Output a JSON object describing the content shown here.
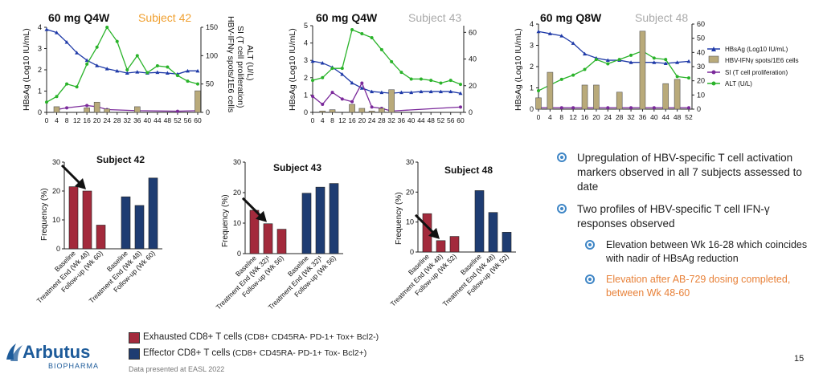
{
  "colors": {
    "hbsag": "#1f3aa8",
    "ifn": "#b9aa7a",
    "si": "#7b2a9b",
    "alt": "#2ab32a",
    "exhausted": "#a32a3c",
    "effector": "#1e3c72",
    "bullet": "#3f86c6",
    "orange": "#e8823a",
    "logo": "#1d5b9a"
  },
  "top_panels": [
    {
      "dose": "60 mg Q4W",
      "subject": "Subject 42",
      "subject_color": "#f0a030",
      "left_axis_label": "HBsAg (Log10 IU/mL)",
      "right_axis_label_1": "HBV-IFNγ spots/1E6 cells",
      "right_axis_label_2": "SI (T cell proliferation)",
      "right_axis_label_3": "ALT (U/L)",
      "left_ticks": [
        "0",
        "1",
        "2",
        "3",
        "4"
      ],
      "right_ticks": [
        "0",
        "50",
        "100",
        "150"
      ],
      "x_ticks": [
        "0",
        "4",
        "8",
        "12",
        "16",
        "20",
        "24",
        "28",
        "32",
        "36",
        "40",
        "44",
        "48",
        "52",
        "56",
        "60"
      ]
    },
    {
      "dose": "60 mg Q4W",
      "subject": "Subject 43",
      "subject_color": "#aaaaaa",
      "left_axis_label": "HBsAg (Log10 IU/mL)",
      "left_ticks": [
        "0",
        "1",
        "2",
        "3",
        "4",
        "5"
      ],
      "right_ticks": [
        "0",
        "20",
        "40",
        "60"
      ],
      "x_ticks": [
        "0",
        "4",
        "8",
        "12",
        "16",
        "20",
        "24",
        "28",
        "32",
        "36",
        "40",
        "44",
        "48",
        "52",
        "56",
        "60"
      ]
    },
    {
      "dose": "60 mg Q8W",
      "subject": "Subject 48",
      "subject_color": "#aaaaaa",
      "left_axis_label": "HBsAg (Log10 IU/mL)",
      "left_ticks": [
        "0",
        "1",
        "2",
        "3",
        "4"
      ],
      "right_ticks": [
        "0",
        "10",
        "20",
        "30",
        "40",
        "50",
        "60"
      ],
      "x_ticks": [
        "0",
        "4",
        "8",
        "12",
        "16",
        "20",
        "24",
        "28",
        "32",
        "36",
        "40",
        "44",
        "48",
        "52"
      ]
    }
  ],
  "top_legend": {
    "hbsag": "HBsAg (Log10  IU/mL)",
    "ifn": "HBV-IFNγ spots/1E6 cells",
    "si": "SI (T cell proliferation)",
    "alt": "ALT (U/L)"
  },
  "chart_data": [
    {
      "type": "line",
      "title": "60 mg Q4W Subject 42",
      "x": [
        0,
        4,
        8,
        12,
        16,
        20,
        24,
        28,
        32,
        36,
        40,
        44,
        48,
        52,
        56,
        60
      ],
      "series": [
        {
          "name": "HBsAg (Log10 IU/mL)",
          "axis": "left",
          "values": [
            3.9,
            3.75,
            3.3,
            2.8,
            2.45,
            2.2,
            2.05,
            1.95,
            1.85,
            1.9,
            1.85,
            1.88,
            1.85,
            1.8,
            1.95,
            1.95
          ]
        },
        {
          "name": "ALT (U/L)",
          "axis": "right",
          "values": [
            18,
            28,
            50,
            45,
            85,
            115,
            150,
            125,
            75,
            100,
            70,
            82,
            80,
            65,
            55,
            50
          ]
        },
        {
          "name": "SI (T cell proliferation)",
          "axis": "right",
          "values": [
            null,
            5,
            8,
            null,
            12,
            10,
            5,
            null,
            null,
            3,
            null,
            null,
            null,
            2,
            null,
            3
          ]
        },
        {
          "name": "HBV-IFNγ spots/1E6 cells",
          "axis": "right",
          "values": [
            null,
            10,
            null,
            null,
            8,
            18,
            6,
            null,
            null,
            10,
            null,
            null,
            null,
            null,
            null,
            38
          ]
        }
      ],
      "ylim_left": [
        0,
        4
      ],
      "ylim_right": [
        0,
        150
      ]
    },
    {
      "type": "line",
      "title": "60 mg Q4W Subject 43",
      "x": [
        0,
        4,
        8,
        12,
        16,
        20,
        24,
        28,
        32,
        36,
        40,
        44,
        48,
        52,
        56,
        60
      ],
      "series": [
        {
          "name": "HBsAg (Log10 IU/mL)",
          "axis": "left",
          "values": [
            2.95,
            2.85,
            2.6,
            2.2,
            1.7,
            1.4,
            1.2,
            1.15,
            1.1,
            1.15,
            1.15,
            1.2,
            1.2,
            1.2,
            1.2,
            1.1
          ]
        },
        {
          "name": "ALT (U/L)",
          "axis": "right",
          "values": [
            24,
            26,
            33,
            33,
            62,
            59,
            56,
            47,
            38,
            30,
            25,
            25,
            24,
            22,
            24,
            21
          ]
        },
        {
          "name": "SI (T cell proliferation)",
          "axis": "right",
          "values": [
            12,
            6,
            15,
            10,
            8,
            22,
            4,
            3,
            1,
            null,
            null,
            null,
            null,
            null,
            null,
            4
          ]
        },
        {
          "name": "HBV-IFNγ spots/1E6 cells",
          "axis": "right",
          "values": [
            null,
            1,
            2,
            null,
            6,
            3,
            1,
            3,
            17,
            null,
            null,
            null,
            null,
            null,
            null,
            null
          ]
        }
      ],
      "ylim_left": [
        0,
        5
      ],
      "ylim_right": [
        0,
        65
      ]
    },
    {
      "type": "line",
      "title": "60 mg Q8W Subject 48",
      "x": [
        0,
        4,
        8,
        12,
        16,
        20,
        24,
        28,
        32,
        36,
        40,
        44,
        48,
        52
      ],
      "series": [
        {
          "name": "HBsAg (Log10 IU/mL)",
          "axis": "left",
          "values": [
            3.65,
            3.55,
            3.45,
            3.1,
            2.6,
            2.4,
            2.3,
            2.3,
            2.2,
            2.2,
            2.2,
            2.15,
            2.2,
            2.25
          ]
        },
        {
          "name": "ALT (U/L)",
          "axis": "right",
          "values": [
            13,
            17,
            21,
            24,
            28,
            35,
            32,
            35,
            38,
            41,
            36,
            35,
            23,
            22
          ]
        },
        {
          "name": "SI (T cell proliferation)",
          "axis": "right",
          "values": [
            1,
            1,
            1,
            1,
            1,
            1,
            1,
            1,
            1,
            1,
            1,
            1,
            1,
            1
          ]
        },
        {
          "name": "HBV-IFNγ spots/1E6 cells",
          "axis": "right",
          "values": [
            8,
            26,
            null,
            null,
            17,
            17,
            null,
            12,
            null,
            55,
            null,
            18,
            21,
            null
          ]
        }
      ],
      "ylim_left": [
        0,
        4
      ],
      "ylim_right": [
        0,
        60
      ]
    },
    {
      "type": "bar",
      "title": "Subject 42",
      "categories": [
        "Baseline",
        "Treatment End (Wk 48)",
        "Follow-up (Wk 60)",
        "Baseline",
        "Treatment End (Wk 48)",
        "Follow-up (Wk 60)"
      ],
      "series": [
        {
          "name": "Exhausted CD8+ T cells",
          "values": [
            21.5,
            20,
            8.2,
            null,
            null,
            null
          ]
        },
        {
          "name": "Effector CD8+ T cells",
          "values": [
            null,
            null,
            null,
            18,
            15,
            24.5
          ]
        }
      ],
      "ylabel": "Frequency (%)",
      "ylim": [
        0,
        30
      ],
      "yticks": [
        "0",
        "10",
        "20",
        "30"
      ]
    },
    {
      "type": "bar",
      "title": "Subject 43",
      "categories": [
        "Baseline",
        "Treatment End (Wk 32)¹",
        "Follow-up (Wk 56)",
        "Baseline",
        "Treatment End (Wk 32)¹",
        "Follow-up (Wk 56)"
      ],
      "series": [
        {
          "name": "Exhausted CD8+ T cells",
          "values": [
            14.2,
            9.8,
            8,
            null,
            null,
            null
          ]
        },
        {
          "name": "Effector CD8+ T cells",
          "values": [
            null,
            null,
            null,
            19.8,
            21.8,
            23
          ]
        }
      ],
      "ylabel": "Frequency (%)",
      "ylim": [
        0,
        30
      ],
      "yticks": [
        "0",
        "10",
        "20",
        "30"
      ]
    },
    {
      "type": "bar",
      "title": "Subject 48",
      "categories": [
        "Baseline",
        "Treatment End (Wk 48)",
        "Follow-up (Wk 52)",
        "Baseline",
        "Treatment End (Wk 48)",
        "Follow-up (Wk 52)"
      ],
      "series": [
        {
          "name": "Exhausted CD8+ T cells",
          "values": [
            12.8,
            3.8,
            5.2,
            null,
            null,
            null
          ]
        },
        {
          "name": "Effector CD8+ T cells",
          "values": [
            null,
            null,
            null,
            20.5,
            13.2,
            6.6
          ]
        }
      ],
      "ylabel": "Frequency (%)",
      "ylim": [
        0,
        30
      ],
      "yticks": [
        "0",
        "10",
        "20",
        "30"
      ]
    }
  ],
  "bottom_titles": [
    "Subject 42",
    "Subject 43",
    "Subject 48"
  ],
  "bottom_ylabel": "Frequency (%)",
  "bullets": {
    "b1": "Upregulation of HBV-specific T cell activation markers observed in all 7 subjects assessed to date",
    "b2": "Two profiles of HBV-specific T cell IFN-γ responses observed",
    "b2a": "Elevation between Wk 16-28 which coincides with nadir of HBsAg reduction",
    "b2b": "Elevation after AB-729 dosing completed, between Wk 48-60"
  },
  "legend": {
    "exhausted_label": "Exhausted CD8+ T cells",
    "exhausted_detail": " (CD8+ CD45RA- PD-1+ Tox+ Bcl2-)",
    "effector_label": "Effector CD8+ T cells",
    "effector_detail": " (CD8+ CD45RA- PD-1+ Tox- Bcl2+)"
  },
  "logo": {
    "name": "Arbutus",
    "sub": "BIOPHARMA"
  },
  "footnote": "Data presented at EASL 2022",
  "page_number": "15"
}
